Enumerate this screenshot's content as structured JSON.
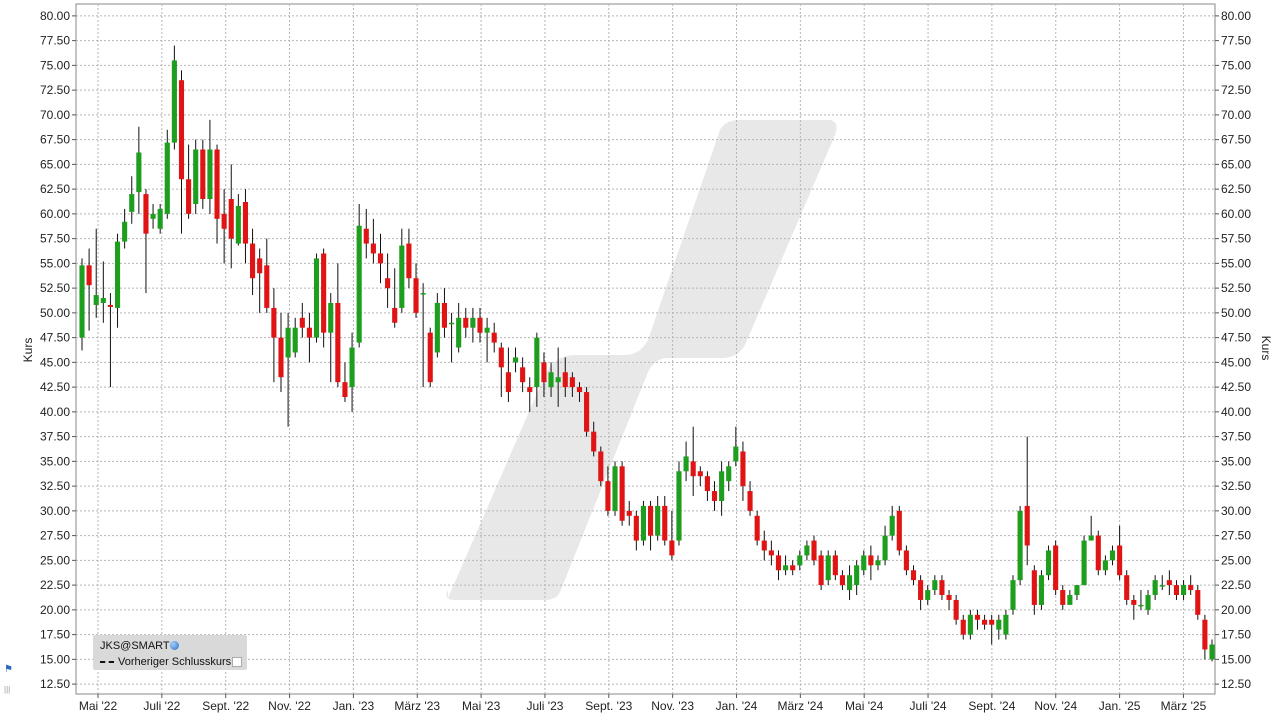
{
  "chart_data": {
    "type": "candlestick",
    "ylabel_left": "Kurs",
    "ylabel_right": "Kurs",
    "ylim": [
      11.5,
      81.2
    ],
    "y_ticks": [
      "12.50",
      "15.00",
      "17.50",
      "20.00",
      "22.50",
      "25.00",
      "27.50",
      "30.00",
      "32.50",
      "35.00",
      "37.50",
      "40.00",
      "42.50",
      "45.00",
      "47.50",
      "50.00",
      "52.50",
      "55.00",
      "57.50",
      "60.00",
      "62.50",
      "65.00",
      "67.50",
      "70.00",
      "72.50",
      "75.00",
      "77.50",
      "80.00"
    ],
    "x_ticks": [
      "Mai '22",
      "Juli '22",
      "Sept. '22",
      "Nov. '22",
      "Jan. '23",
      "März '23",
      "Mai '23",
      "Juli '23",
      "Sept. '23",
      "Nov. '23",
      "Jan. '24",
      "März '24",
      "Mai '24",
      "Juli '24",
      "Sept. '24",
      "Nov. '24",
      "Jan. '25",
      "März '25"
    ],
    "grid": true,
    "up_color": "#1e9e1e",
    "down_color": "#e01414",
    "candles": [
      [
        47.5,
        54.8,
        46.2,
        55.5
      ],
      [
        54.8,
        52.8,
        48.2,
        56.5
      ],
      [
        50.8,
        51.8,
        49.5,
        58.5
      ],
      [
        51.0,
        51.5,
        49.0,
        55.2
      ],
      [
        50.8,
        50.6,
        42.5,
        52.0
      ],
      [
        50.5,
        57.2,
        48.5,
        58.0
      ],
      [
        57.2,
        59.2,
        56.5,
        60.5
      ],
      [
        60.2,
        62.0,
        59.0,
        63.8
      ],
      [
        62.2,
        66.2,
        60.0,
        68.8
      ],
      [
        62.0,
        58.0,
        52.0,
        62.5
      ],
      [
        59.5,
        60.0,
        58.5,
        61.0
      ],
      [
        58.5,
        60.5,
        58.0,
        61.0
      ],
      [
        60.0,
        67.2,
        59.5,
        68.5
      ],
      [
        67.2,
        75.5,
        66.5,
        77.0
      ],
      [
        73.5,
        63.5,
        58.0,
        74.5
      ],
      [
        63.5,
        60.0,
        59.5,
        67.0
      ],
      [
        61.0,
        66.5,
        60.0,
        67.5
      ],
      [
        66.5,
        61.5,
        60.5,
        67.5
      ],
      [
        61.5,
        66.5,
        60.0,
        69.5
      ],
      [
        66.5,
        59.5,
        57.0,
        67.0
      ],
      [
        60.0,
        58.5,
        55.0,
        62.5
      ],
      [
        61.5,
        57.5,
        54.5,
        65.0
      ],
      [
        57.0,
        60.8,
        56.8,
        62.0
      ],
      [
        61.2,
        57.0,
        55.0,
        62.5
      ],
      [
        57.0,
        53.5,
        51.8,
        58.5
      ],
      [
        55.5,
        54.0,
        50.0,
        56.5
      ],
      [
        54.8,
        50.5,
        50.0,
        57.5
      ],
      [
        50.5,
        47.5,
        43.0,
        52.5
      ],
      [
        47.5,
        43.5,
        42.0,
        50.0
      ],
      [
        45.5,
        48.5,
        38.5,
        50.0
      ],
      [
        46.0,
        48.5,
        45.5,
        49.5
      ],
      [
        49.5,
        48.5,
        47.5,
        51.0
      ],
      [
        48.5,
        47.5,
        45.0,
        50.0
      ],
      [
        47.5,
        55.5,
        47.0,
        56.0
      ],
      [
        56.0,
        48.0,
        46.5,
        56.5
      ],
      [
        48.0,
        51.0,
        43.0,
        52.0
      ],
      [
        51.0,
        43.0,
        42.5,
        55.0
      ],
      [
        43.0,
        41.5,
        41.0,
        45.0
      ],
      [
        42.5,
        46.5,
        40.0,
        48.0
      ],
      [
        47.0,
        58.8,
        46.5,
        61.0
      ],
      [
        58.5,
        57.0,
        55.5,
        60.5
      ],
      [
        57.0,
        56.0,
        55.0,
        59.5
      ],
      [
        56.0,
        55.0,
        53.0,
        58.0
      ],
      [
        53.5,
        52.5,
        50.5,
        56.0
      ],
      [
        50.5,
        49.0,
        48.5,
        54.5
      ],
      [
        50.5,
        56.8,
        50.0,
        58.5
      ],
      [
        57.0,
        53.5,
        52.5,
        58.5
      ],
      [
        53.5,
        50.0,
        49.5,
        55.0
      ],
      [
        52.0,
        52.0,
        42.5,
        53.0
      ],
      [
        48.0,
        43.0,
        42.5,
        48.5
      ],
      [
        46.0,
        51.0,
        45.5,
        52.0
      ],
      [
        51.0,
        48.5,
        47.5,
        52.5
      ],
      [
        49.0,
        49.0,
        45.0,
        50.0
      ],
      [
        46.5,
        49.5,
        46.0,
        51.0
      ],
      [
        49.5,
        48.5,
        47.5,
        50.5
      ],
      [
        48.5,
        49.5,
        47.0,
        50.5
      ],
      [
        49.5,
        48.0,
        47.0,
        50.5
      ],
      [
        48.0,
        48.5,
        45.0,
        49.5
      ],
      [
        48.0,
        47.0,
        46.0,
        49.0
      ],
      [
        46.5,
        44.5,
        41.5,
        47.0
      ],
      [
        44.0,
        42.0,
        41.0,
        46.5
      ],
      [
        45.0,
        45.5,
        44.0,
        46.5
      ],
      [
        44.5,
        43.0,
        42.0,
        45.5
      ],
      [
        42.5,
        42.0,
        40.0,
        43.5
      ],
      [
        42.5,
        47.5,
        40.5,
        48.0
      ],
      [
        45.0,
        43.0,
        41.5,
        46.0
      ],
      [
        42.5,
        44.0,
        41.5,
        45.0
      ],
      [
        43.0,
        43.5,
        40.5,
        46.5
      ],
      [
        44.0,
        42.5,
        41.5,
        45.5
      ],
      [
        43.5,
        42.5,
        41.5,
        44.0
      ],
      [
        42.5,
        42.0,
        41.0,
        43.0
      ],
      [
        42.0,
        38.0,
        37.5,
        42.5
      ],
      [
        38.0,
        36.0,
        35.5,
        39.0
      ],
      [
        36.0,
        33.0,
        32.5,
        36.5
      ],
      [
        33.0,
        30.0,
        29.5,
        34.5
      ],
      [
        30.0,
        34.5,
        29.5,
        35.0
      ],
      [
        34.5,
        29.0,
        28.5,
        35.0
      ],
      [
        30.0,
        29.5,
        28.5,
        31.0
      ],
      [
        29.5,
        27.0,
        26.0,
        30.0
      ],
      [
        27.0,
        30.5,
        26.5,
        31.0
      ],
      [
        30.5,
        27.5,
        26.0,
        31.0
      ],
      [
        27.5,
        30.5,
        27.0,
        31.5
      ],
      [
        30.5,
        27.0,
        26.5,
        31.5
      ],
      [
        27.0,
        25.5,
        25.0,
        30.0
      ],
      [
        27.0,
        34.0,
        26.5,
        35.0
      ],
      [
        34.0,
        35.5,
        33.0,
        37.0
      ],
      [
        35.0,
        33.5,
        31.5,
        38.5
      ],
      [
        34.0,
        33.5,
        32.5,
        34.5
      ],
      [
        33.5,
        32.0,
        31.0,
        34.0
      ],
      [
        32.0,
        31.0,
        30.0,
        33.0
      ],
      [
        31.0,
        34.0,
        29.5,
        35.0
      ],
      [
        33.0,
        34.5,
        32.0,
        35.0
      ],
      [
        35.0,
        36.5,
        34.5,
        38.5
      ],
      [
        36.0,
        32.5,
        31.0,
        37.0
      ],
      [
        32.0,
        30.0,
        29.5,
        33.0
      ],
      [
        29.5,
        27.0,
        26.5,
        30.0
      ],
      [
        27.0,
        26.0,
        25.0,
        28.0
      ],
      [
        26.0,
        25.5,
        24.5,
        27.0
      ],
      [
        25.5,
        24.0,
        23.0,
        26.0
      ],
      [
        24.0,
        24.5,
        23.5,
        25.5
      ],
      [
        24.5,
        24.0,
        23.5,
        25.0
      ],
      [
        24.5,
        25.5,
        24.0,
        26.0
      ],
      [
        25.5,
        26.5,
        25.0,
        27.0
      ],
      [
        27.0,
        25.0,
        24.5,
        27.5
      ],
      [
        25.5,
        22.5,
        22.0,
        26.0
      ],
      [
        23.0,
        25.5,
        22.5,
        26.0
      ],
      [
        25.5,
        23.5,
        23.0,
        26.0
      ],
      [
        23.5,
        22.5,
        22.0,
        24.0
      ],
      [
        22.0,
        23.5,
        21.0,
        24.5
      ],
      [
        22.5,
        24.5,
        21.5,
        25.0
      ],
      [
        24.0,
        25.5,
        23.5,
        26.0
      ],
      [
        25.5,
        24.5,
        23.0,
        26.5
      ],
      [
        24.5,
        25.0,
        24.0,
        25.5
      ],
      [
        25.0,
        27.5,
        24.5,
        28.5
      ],
      [
        27.5,
        29.5,
        27.0,
        30.5
      ],
      [
        30.0,
        26.0,
        25.5,
        30.5
      ],
      [
        26.0,
        24.0,
        23.5,
        26.5
      ],
      [
        24.0,
        23.0,
        22.5,
        24.5
      ],
      [
        23.0,
        21.0,
        20.0,
        23.5
      ],
      [
        21.0,
        22.0,
        20.5,
        22.5
      ],
      [
        22.0,
        23.0,
        21.5,
        23.5
      ],
      [
        23.0,
        21.5,
        21.0,
        23.5
      ],
      [
        21.5,
        21.0,
        20.0,
        22.0
      ],
      [
        21.0,
        19.0,
        18.5,
        21.5
      ],
      [
        19.0,
        17.5,
        17.0,
        19.5
      ],
      [
        17.5,
        19.5,
        17.0,
        20.0
      ],
      [
        19.5,
        19.0,
        18.0,
        20.0
      ],
      [
        19.0,
        18.5,
        18.0,
        19.5
      ],
      [
        19.0,
        18.5,
        16.5,
        19.5
      ],
      [
        18.0,
        19.0,
        17.0,
        19.5
      ],
      [
        17.5,
        19.5,
        17.0,
        20.0
      ],
      [
        20.0,
        23.0,
        19.5,
        23.5
      ],
      [
        23.0,
        30.0,
        22.5,
        30.5
      ],
      [
        30.5,
        26.5,
        24.5,
        37.5
      ],
      [
        24.0,
        20.5,
        19.5,
        24.5
      ],
      [
        20.5,
        23.5,
        20.0,
        24.0
      ],
      [
        23.5,
        26.0,
        23.0,
        26.5
      ],
      [
        26.5,
        22.0,
        21.5,
        27.0
      ],
      [
        22.0,
        20.5,
        20.0,
        22.5
      ],
      [
        20.5,
        21.5,
        20.5,
        22.0
      ],
      [
        21.5,
        22.5,
        21.0,
        22.5
      ],
      [
        22.5,
        27.0,
        22.5,
        27.5
      ],
      [
        27.0,
        27.5,
        27.0,
        29.5
      ],
      [
        27.5,
        24.0,
        23.5,
        28.0
      ],
      [
        24.0,
        25.0,
        23.5,
        25.5
      ],
      [
        25.0,
        26.0,
        24.5,
        26.5
      ],
      [
        26.5,
        23.5,
        23.0,
        28.5
      ],
      [
        23.5,
        21.0,
        20.5,
        24.0
      ],
      [
        21.0,
        20.5,
        19.0,
        21.5
      ],
      [
        20.5,
        20.5,
        20.0,
        22.0
      ],
      [
        20.0,
        21.5,
        19.5,
        22.0
      ],
      [
        21.5,
        23.0,
        21.0,
        23.5
      ],
      [
        22.5,
        22.5,
        22.0,
        23.5
      ],
      [
        23.0,
        22.5,
        21.5,
        24.0
      ],
      [
        22.5,
        21.5,
        21.0,
        23.0
      ],
      [
        21.5,
        22.5,
        21.0,
        23.0
      ],
      [
        22.5,
        22.0,
        21.5,
        23.5
      ],
      [
        22.0,
        19.5,
        19.0,
        22.5
      ],
      [
        19.0,
        16.0,
        15.0,
        19.5
      ],
      [
        15.0,
        16.5,
        14.8,
        17.0
      ]
    ]
  },
  "legend": {
    "symbol": "JKS@SMART",
    "globe_icon": "globe-icon",
    "previous_close_label": "Vorheriger Schlusskurs"
  }
}
